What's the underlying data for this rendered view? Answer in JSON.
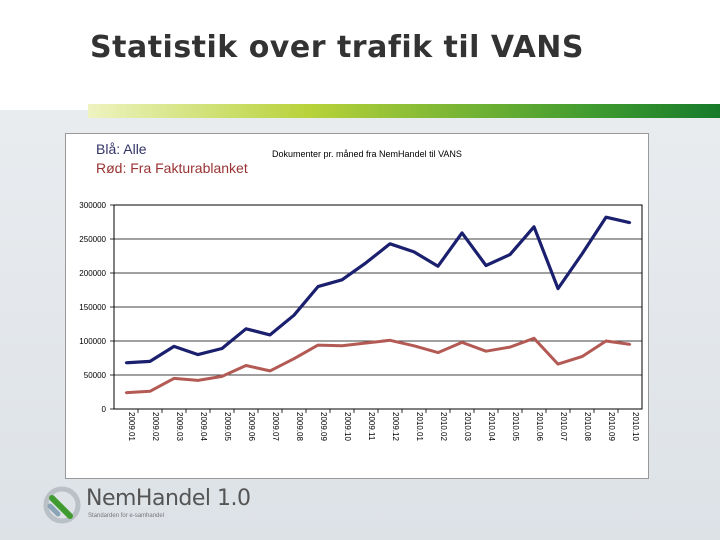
{
  "slide": {
    "title": "Statistik over trafik til VANS"
  },
  "legend": {
    "blue": "Blå: Alle",
    "red": "Rød: Fra Fakturablanket"
  },
  "colors": {
    "blue_series": "#1a1f6e",
    "red_series": "#b35a55",
    "accent_green": "#3f9b2f"
  },
  "logo": {
    "icon": "nemhandel-logo-icon",
    "text": "NemHandel 1.0",
    "tagline": "Standarden for e-samhandel"
  },
  "chart_data": {
    "type": "line",
    "title": "Dokumenter pr. måned fra NemHandel til VANS",
    "xlabel": "",
    "ylabel": "",
    "ylim": [
      0,
      300000
    ],
    "yticks": [
      0,
      50000,
      100000,
      150000,
      200000,
      250000,
      300000
    ],
    "grid": true,
    "categories": [
      "2009.01",
      "2009.02",
      "2009.03",
      "2009.04",
      "2009.05",
      "2009.06",
      "2009.07",
      "2009.08",
      "2009.09",
      "2009.10",
      "2009.11",
      "2009.12",
      "2010.01",
      "2010.02",
      "2010.03",
      "2010.04",
      "2010.05",
      "2010.06",
      "2010.07",
      "2010.08",
      "2010.09",
      "2010.10"
    ],
    "series": [
      {
        "name": "Blå: Alle",
        "color": "#1a1f6e",
        "values": [
          68000,
          70000,
          92000,
          80000,
          89000,
          118000,
          109000,
          138000,
          180000,
          190000,
          215000,
          243000,
          231000,
          210000,
          259000,
          211000,
          227000,
          268000,
          177000,
          228000,
          282000,
          274000
        ]
      },
      {
        "name": "Rød: Fra Fakturablanket",
        "color": "#b35a55",
        "values": [
          24000,
          26000,
          45000,
          42000,
          48000,
          64000,
          56000,
          74000,
          94000,
          93000,
          97000,
          101000,
          93000,
          83000,
          98000,
          85000,
          91000,
          104000,
          66000,
          77000,
          100000,
          95000
        ]
      }
    ]
  }
}
